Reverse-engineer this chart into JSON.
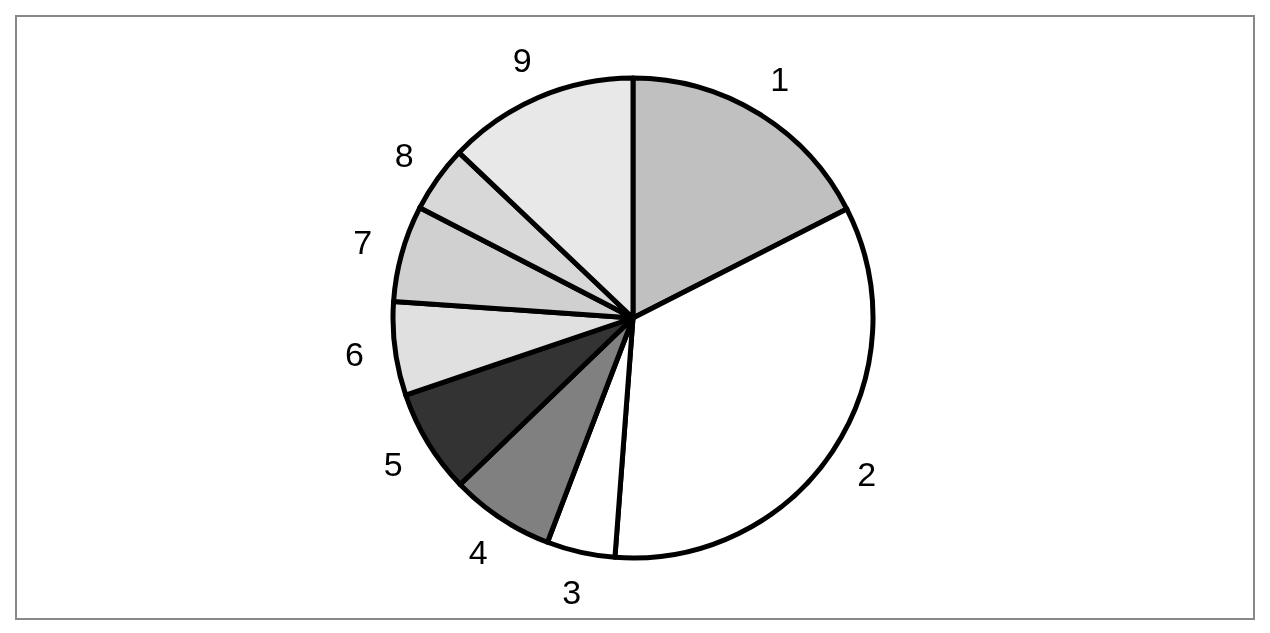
{
  "chart_data": {
    "type": "pie",
    "categories": [
      "1",
      "2",
      "3",
      "4",
      "5",
      "6",
      "7",
      "8",
      "9"
    ],
    "values": [
      17.5,
      33.7,
      4.6,
      7.0,
      7.0,
      6.3,
      6.5,
      4.5,
      12.9
    ],
    "colors": [
      "#c0c0c0",
      "#ffffff",
      "#ffffff",
      "#808080",
      "#333333",
      "#e0e0e0",
      "#d0d0d0",
      "#d8d8d8",
      "#e8e8e8"
    ]
  }
}
